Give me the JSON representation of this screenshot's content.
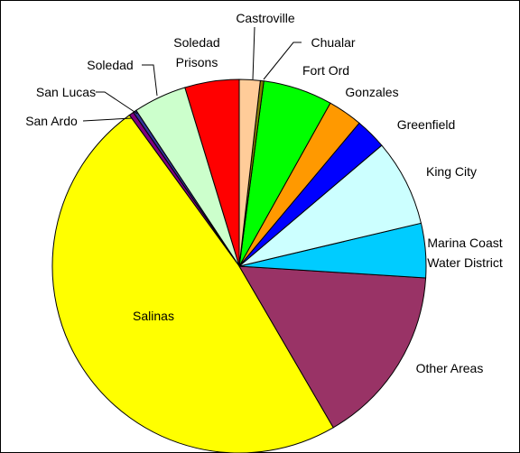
{
  "chart_data": {
    "type": "pie",
    "categories": [
      "Castroville",
      "Chualar",
      "Fort Ord",
      "Gonzales",
      "Greenfield",
      "King City",
      "Marina Coast Water District",
      "Other Areas",
      "Salinas",
      "San Ardo",
      "San Lucas",
      "Soledad",
      "Soledad Prisons"
    ],
    "values": [
      1.8,
      0.3,
      6,
      3,
      2.7,
      7.5,
      4.7,
      15.6,
      48.4,
      0.4,
      0.3,
      4.6,
      4.7
    ],
    "colors": [
      "#ffcc99",
      "#808000",
      "#00ff00",
      "#ff9900",
      "#0000ff",
      "#ccffff",
      "#00ccff",
      "#993366",
      "#ffff00",
      "#800080",
      "#333399",
      "#ccffcc",
      "#ff0000"
    ]
  }
}
